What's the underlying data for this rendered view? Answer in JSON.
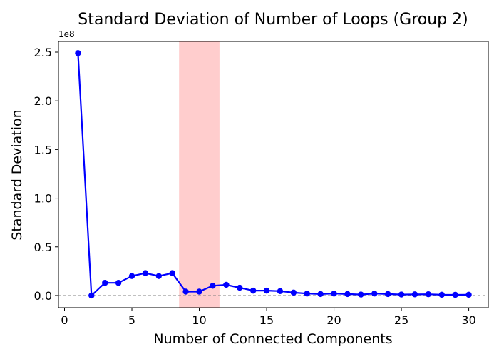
{
  "chart_data": {
    "type": "line",
    "title": "Standard Deviation of Number of Loops (Group 2)",
    "xlabel": "Number of Connected Components",
    "ylabel": "Standard Deviation",
    "y_offset_label": "1e8",
    "xlim": [
      -0.45,
      31.45
    ],
    "ylim": [
      -0.125,
      2.61
    ],
    "x_ticks": [
      0,
      5,
      10,
      15,
      20,
      25,
      30
    ],
    "x_tick_labels": [
      "0",
      "5",
      "10",
      "15",
      "20",
      "25",
      "30"
    ],
    "y_ticks": [
      0.0,
      0.5,
      1.0,
      1.5,
      2.0,
      2.5
    ],
    "y_tick_labels": [
      "0.0",
      "0.5",
      "1.0",
      "1.5",
      "2.0",
      "2.5"
    ],
    "grid": false,
    "highlight_span": {
      "x_start": 8.5,
      "x_end": 11.5,
      "color": "#ff9b9b"
    },
    "reference_line": {
      "y": 0,
      "style": "dashed",
      "color": "#808080"
    },
    "series": [
      {
        "color": "#0000ff",
        "marker": "circle",
        "x": [
          1,
          2,
          3,
          4,
          5,
          6,
          7,
          8,
          9,
          10,
          11,
          12,
          13,
          14,
          15,
          16,
          17,
          18,
          19,
          20,
          21,
          22,
          23,
          24,
          25,
          26,
          27,
          28,
          29,
          30
        ],
        "y": [
          2.49,
          0.0,
          0.13,
          0.13,
          0.2,
          0.23,
          0.2,
          0.23,
          0.04,
          0.04,
          0.1,
          0.11,
          0.08,
          0.05,
          0.05,
          0.045,
          0.03,
          0.02,
          0.015,
          0.02,
          0.015,
          0.01,
          0.02,
          0.015,
          0.01,
          0.012,
          0.013,
          0.008,
          0.007,
          0.008
        ]
      }
    ]
  }
}
